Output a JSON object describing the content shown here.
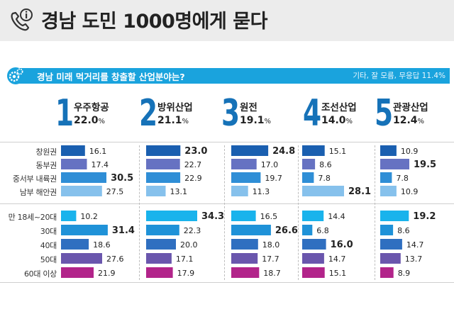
{
  "header": {
    "title": "경남 도민 1000명에게 묻다"
  },
  "banner": {
    "question": "경남 미래 먹거리를 창출할 산업분야는?",
    "note": "기타, 잘 모름, 무응답 11.4%"
  },
  "colors": {
    "header_bg": "#ececec",
    "banner": "#1aa3dd",
    "rank_number": "#1672b8",
    "region": [
      "#1a5fb0",
      "#6672c2",
      "#2f8ed6",
      "#86c1ec"
    ],
    "age": [
      "#19b3ec",
      "#1f92d8",
      "#2f6fc0",
      "#6a56ad",
      "#b2248a"
    ]
  },
  "icons": {
    "header": "phone-info-icon",
    "banner": "gears-icon"
  },
  "ranks": [
    {
      "rank": "1",
      "name": "우주항공",
      "pct": "22.0",
      "unit": "%"
    },
    {
      "rank": "2",
      "name": "방위산업",
      "pct": "21.1",
      "unit": "%"
    },
    {
      "rank": "3",
      "name": "원전",
      "pct": "19.1",
      "unit": "%"
    },
    {
      "rank": "4",
      "name": "조선산업",
      "pct": "14.0",
      "unit": "%"
    },
    {
      "rank": "5",
      "name": "관광산업",
      "pct": "12.4",
      "unit": "%"
    }
  ],
  "chart_data": {
    "type": "bar",
    "orientation": "horizontal",
    "region_groups": [
      "창원권",
      "동부권",
      "중서부 내륙권",
      "남부 해안권"
    ],
    "age_groups": [
      "만 18세~20대",
      "30대",
      "40대",
      "50대",
      "60대 이상"
    ],
    "series": [
      {
        "name": "우주항공",
        "region": [
          16.1,
          17.4,
          30.5,
          27.5
        ],
        "age": [
          10.2,
          31.4,
          18.6,
          27.6,
          21.9
        ]
      },
      {
        "name": "방위산업",
        "region": [
          23.0,
          22.7,
          22.9,
          13.1
        ],
        "age": [
          34.3,
          22.3,
          20.0,
          17.1,
          17.9
        ]
      },
      {
        "name": "원전",
        "region": [
          24.8,
          17.0,
          19.7,
          11.3
        ],
        "age": [
          16.5,
          26.6,
          18.0,
          17.7,
          18.7
        ]
      },
      {
        "name": "조선산업",
        "region": [
          15.1,
          8.6,
          7.8,
          28.1
        ],
        "age": [
          14.4,
          6.8,
          16.0,
          14.7,
          15.1
        ]
      },
      {
        "name": "관광산업",
        "region": [
          10.9,
          19.5,
          7.8,
          10.9
        ],
        "age": [
          19.2,
          8.6,
          14.7,
          13.7,
          8.9
        ]
      }
    ],
    "highlight_max": true
  }
}
